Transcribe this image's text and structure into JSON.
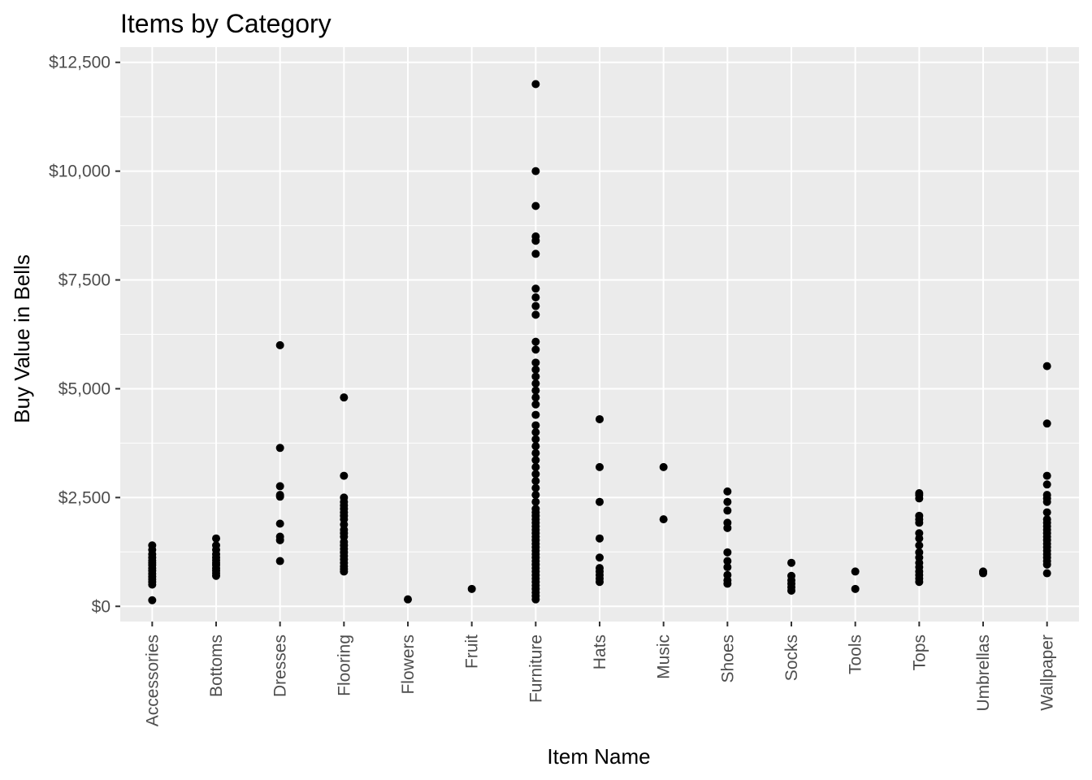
{
  "chart_data": {
    "type": "scatter",
    "title": "Items by Category",
    "xlabel": "Item Name",
    "ylabel": "Buy Value in Bells",
    "ylim": [
      -350,
      12850
    ],
    "y_ticks": [
      0,
      2500,
      5000,
      7500,
      10000,
      12500
    ],
    "y_tick_labels": [
      "$0",
      "$2,500",
      "$5,000",
      "$7,500",
      "$10,000",
      "$12,500"
    ],
    "y_minor_ticks": [
      1250,
      3750,
      6250,
      8750,
      11250
    ],
    "grid": true,
    "legend": "none",
    "colors": {
      "panel": "#ebebeb",
      "grid": "#ffffff",
      "point": "#000000",
      "tick": "#333333"
    },
    "categories": [
      "Accessories",
      "Bottoms",
      "Dresses",
      "Flooring",
      "Flowers",
      "Fruit",
      "Furniture",
      "Hats",
      "Music",
      "Shoes",
      "Socks",
      "Tools",
      "Tops",
      "Umbrellas",
      "Wallpaper"
    ],
    "points": {
      "Accessories": [
        140,
        500,
        560,
        620,
        680,
        750,
        820,
        880,
        950,
        1000,
        1050,
        1120,
        1200,
        1300,
        1400
      ],
      "Bottoms": [
        700,
        760,
        820,
        880,
        950,
        1000,
        1060,
        1120,
        1200,
        1300,
        1400,
        1560
      ],
      "Dresses": [
        1040,
        1520,
        1600,
        1900,
        2520,
        2560,
        2760,
        3640,
        6000
      ],
      "Flooring": [
        800,
        860,
        920,
        1000,
        1080,
        1160,
        1240,
        1320,
        1400,
        1480,
        1600,
        1680,
        1760,
        1880,
        2000,
        2080,
        2160,
        2240,
        2320,
        2400,
        2500,
        3000,
        4800
      ],
      "Flowers": [
        160
      ],
      "Fruit": [
        400
      ],
      "Furniture": [
        160,
        240,
        320,
        400,
        480,
        560,
        640,
        720,
        800,
        880,
        960,
        1040,
        1120,
        1200,
        1280,
        1360,
        1440,
        1520,
        1600,
        1680,
        1760,
        1840,
        1920,
        2000,
        2080,
        2160,
        2240,
        2400,
        2560,
        2720,
        2880,
        3040,
        3200,
        3360,
        3520,
        3680,
        3840,
        4000,
        4160,
        4400,
        4640,
        4800,
        4960,
        5120,
        5280,
        5440,
        5600,
        5900,
        6080,
        6700,
        6900,
        7100,
        7300,
        8100,
        8400,
        8500,
        9200,
        10000,
        12000
      ],
      "Hats": [
        560,
        640,
        720,
        800,
        880,
        1120,
        1560,
        2400,
        3200,
        4300
      ],
      "Music": [
        2000,
        3200
      ],
      "Shoes": [
        520,
        600,
        720,
        900,
        1040,
        1240,
        1800,
        1920,
        2200,
        2400,
        2640
      ],
      "Socks": [
        360,
        440,
        520,
        600,
        700,
        1000
      ],
      "Tools": [
        400,
        800
      ],
      "Tops": [
        560,
        640,
        720,
        800,
        900,
        1000,
        1120,
        1240,
        1400,
        1560,
        1680,
        1920,
        2000,
        2080,
        2480,
        2560,
        2600
      ],
      "Umbrellas": [
        760,
        800
      ],
      "Wallpaper": [
        760,
        960,
        1040,
        1120,
        1200,
        1280,
        1360,
        1440,
        1520,
        1600,
        1680,
        1760,
        1840,
        1920,
        2000,
        2160,
        2400,
        2480,
        2560,
        2800,
        3000,
        4200,
        5520
      ]
    }
  }
}
